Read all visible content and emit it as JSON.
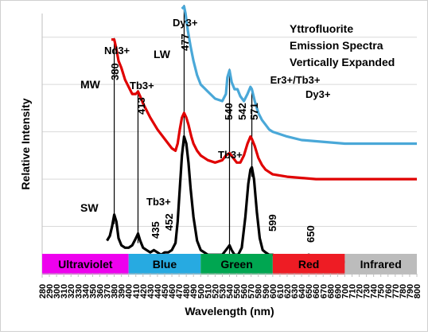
{
  "chart_data": {
    "type": "line",
    "title_lines": [
      "Yttrofluorite",
      "Emission Spectra",
      "Vertically Expanded"
    ],
    "xlabel": "Wavelength (nm)",
    "ylabel": "Relative Intensity",
    "xlim": [
      280,
      800
    ],
    "x_ticks": [
      280,
      290,
      300,
      310,
      320,
      330,
      340,
      350,
      360,
      370,
      380,
      390,
      400,
      410,
      420,
      430,
      440,
      450,
      460,
      470,
      480,
      490,
      500,
      510,
      520,
      530,
      540,
      550,
      560,
      570,
      580,
      590,
      600,
      610,
      620,
      630,
      640,
      650,
      660,
      670,
      680,
      690,
      700,
      710,
      720,
      730,
      740,
      750,
      760,
      770,
      780,
      790,
      800
    ],
    "ylim": [
      0,
      1.1
    ],
    "y_gridlines": [
      0.2,
      0.4,
      0.6,
      0.8,
      1.0
    ],
    "grid": "horizontal",
    "series": [
      {
        "name": "SW",
        "color": "#000000",
        "points": [
          [
            370,
            0.14
          ],
          [
            374,
            0.16
          ],
          [
            377,
            0.2
          ],
          [
            380,
            0.25
          ],
          [
            383,
            0.22
          ],
          [
            386,
            0.15
          ],
          [
            390,
            0.12
          ],
          [
            395,
            0.11
          ],
          [
            400,
            0.11
          ],
          [
            405,
            0.12
          ],
          [
            410,
            0.15
          ],
          [
            413,
            0.17
          ],
          [
            416,
            0.14
          ],
          [
            420,
            0.11
          ],
          [
            425,
            0.1
          ],
          [
            430,
            0.09
          ],
          [
            435,
            0.1
          ],
          [
            440,
            0.09
          ],
          [
            445,
            0.08
          ],
          [
            450,
            0.09
          ],
          [
            455,
            0.09
          ],
          [
            460,
            0.1
          ],
          [
            465,
            0.13
          ],
          [
            468,
            0.22
          ],
          [
            471,
            0.36
          ],
          [
            474,
            0.5
          ],
          [
            477,
            0.58
          ],
          [
            480,
            0.55
          ],
          [
            483,
            0.47
          ],
          [
            486,
            0.36
          ],
          [
            490,
            0.24
          ],
          [
            495,
            0.14
          ],
          [
            500,
            0.1
          ],
          [
            505,
            0.09
          ],
          [
            510,
            0.08
          ],
          [
            520,
            0.08
          ],
          [
            530,
            0.08
          ],
          [
            535,
            0.1
          ],
          [
            540,
            0.12
          ],
          [
            543,
            0.1
          ],
          [
            547,
            0.08
          ],
          [
            552,
            0.08
          ],
          [
            557,
            0.11
          ],
          [
            562,
            0.24
          ],
          [
            566,
            0.38
          ],
          [
            569,
            0.44
          ],
          [
            571,
            0.45
          ],
          [
            574,
            0.4
          ],
          [
            578,
            0.26
          ],
          [
            582,
            0.15
          ],
          [
            586,
            0.1
          ],
          [
            590,
            0.09
          ],
          [
            595,
            0.08
          ],
          [
            600,
            0.08
          ],
          [
            610,
            0.07
          ],
          [
            620,
            0.065
          ],
          [
            630,
            0.065
          ],
          [
            640,
            0.07
          ],
          [
            650,
            0.08
          ],
          [
            660,
            0.07
          ],
          [
            670,
            0.06
          ],
          [
            680,
            0.055
          ],
          [
            690,
            0.05
          ],
          [
            700,
            0.05
          ],
          [
            720,
            0.05
          ],
          [
            740,
            0.05
          ],
          [
            760,
            0.055
          ],
          [
            780,
            0.05
          ],
          [
            800,
            0.05
          ]
        ]
      },
      {
        "name": "MW",
        "color": "#e00000",
        "points": [
          [
            376,
            0.99
          ],
          [
            380,
            0.99
          ],
          [
            383,
            0.95
          ],
          [
            386,
            0.9
          ],
          [
            390,
            0.87
          ],
          [
            395,
            0.82
          ],
          [
            400,
            0.79
          ],
          [
            405,
            0.76
          ],
          [
            410,
            0.76
          ],
          [
            413,
            0.77
          ],
          [
            416,
            0.75
          ],
          [
            420,
            0.72
          ],
          [
            430,
            0.66
          ],
          [
            440,
            0.61
          ],
          [
            450,
            0.57
          ],
          [
            460,
            0.53
          ],
          [
            465,
            0.52
          ],
          [
            468,
            0.55
          ],
          [
            471,
            0.61
          ],
          [
            474,
            0.66
          ],
          [
            477,
            0.68
          ],
          [
            480,
            0.66
          ],
          [
            483,
            0.63
          ],
          [
            487,
            0.58
          ],
          [
            490,
            0.55
          ],
          [
            495,
            0.52
          ],
          [
            500,
            0.5
          ],
          [
            510,
            0.48
          ],
          [
            520,
            0.47
          ],
          [
            530,
            0.48
          ],
          [
            535,
            0.5
          ],
          [
            540,
            0.51
          ],
          [
            545,
            0.49
          ],
          [
            550,
            0.47
          ],
          [
            555,
            0.47
          ],
          [
            560,
            0.5
          ],
          [
            565,
            0.55
          ],
          [
            569,
            0.58
          ],
          [
            571,
            0.57
          ],
          [
            575,
            0.54
          ],
          [
            580,
            0.49
          ],
          [
            585,
            0.46
          ],
          [
            590,
            0.44
          ],
          [
            595,
            0.43
          ],
          [
            600,
            0.42
          ],
          [
            620,
            0.41
          ],
          [
            640,
            0.405
          ],
          [
            660,
            0.4
          ],
          [
            680,
            0.4
          ],
          [
            700,
            0.4
          ],
          [
            740,
            0.4
          ],
          [
            780,
            0.4
          ],
          [
            800,
            0.4
          ]
        ]
      },
      {
        "name": "LW",
        "color": "#4aa8d8",
        "points": [
          [
            474,
            1.12
          ],
          [
            477,
            1.13
          ],
          [
            479,
            1.1
          ],
          [
            482,
            1.03
          ],
          [
            486,
            0.96
          ],
          [
            490,
            0.9
          ],
          [
            495,
            0.84
          ],
          [
            500,
            0.8
          ],
          [
            510,
            0.77
          ],
          [
            520,
            0.74
          ],
          [
            530,
            0.73
          ],
          [
            535,
            0.76
          ],
          [
            537,
            0.83
          ],
          [
            540,
            0.86
          ],
          [
            543,
            0.81
          ],
          [
            547,
            0.78
          ],
          [
            551,
            0.78
          ],
          [
            555,
            0.75
          ],
          [
            560,
            0.73
          ],
          [
            565,
            0.76
          ],
          [
            569,
            0.79
          ],
          [
            571,
            0.78
          ],
          [
            575,
            0.73
          ],
          [
            580,
            0.68
          ],
          [
            585,
            0.65
          ],
          [
            590,
            0.63
          ],
          [
            595,
            0.61
          ],
          [
            600,
            0.6
          ],
          [
            620,
            0.58
          ],
          [
            640,
            0.565
          ],
          [
            660,
            0.56
          ],
          [
            680,
            0.555
          ],
          [
            700,
            0.55
          ],
          [
            740,
            0.55
          ],
          [
            780,
            0.55
          ],
          [
            800,
            0.55
          ]
        ]
      }
    ],
    "series_labels": [
      {
        "text": "SW",
        "series": "SW"
      },
      {
        "text": "MW",
        "series": "MW"
      },
      {
        "text": "LW",
        "series": "LW"
      }
    ],
    "annotations": [
      {
        "text": "Nd3+",
        "x": 380,
        "rotated": false
      },
      {
        "text": "380",
        "x": 380,
        "rotated": true
      },
      {
        "text": "Tb3+",
        "x": 413,
        "rotated": false
      },
      {
        "text": "413",
        "x": 413,
        "rotated": true
      },
      {
        "text": "Dy3+",
        "x": 477,
        "rotated": false
      },
      {
        "text": "477",
        "x": 477,
        "rotated": true
      },
      {
        "text": "Tb3+",
        "x": 440,
        "rotated": false
      },
      {
        "text": "435",
        "x": 435,
        "rotated": true
      },
      {
        "text": "452",
        "x": 452,
        "rotated": true
      },
      {
        "text": "Er3+/Tb3+",
        "x": 545,
        "rotated": false
      },
      {
        "text": "540",
        "x": 540,
        "rotated": true
      },
      {
        "text": "542",
        "x": 542,
        "rotated": true
      },
      {
        "text": "571",
        "x": 571,
        "rotated": true
      },
      {
        "text": "Dy3+",
        "x": 590,
        "rotated": false
      },
      {
        "text": "Tb3+",
        "x": 540,
        "rotated": false
      },
      {
        "text": "599",
        "x": 599,
        "rotated": true
      },
      {
        "text": "650",
        "x": 650,
        "rotated": true
      }
    ],
    "marker_lines": [
      380,
      413,
      477,
      540,
      571
    ],
    "bands": [
      {
        "label": "Ultraviolet",
        "from": 280,
        "to": 400,
        "color": "#ee00ee"
      },
      {
        "label": "Blue",
        "from": 400,
        "to": 500,
        "color": "#27aae1"
      },
      {
        "label": "Green",
        "from": 500,
        "to": 600,
        "color": "#00a651"
      },
      {
        "label": "Red",
        "from": 600,
        "to": 700,
        "color": "#ee1c24"
      },
      {
        "label": "Infrared",
        "from": 700,
        "to": 800,
        "color": "#bcbcbc"
      }
    ]
  }
}
